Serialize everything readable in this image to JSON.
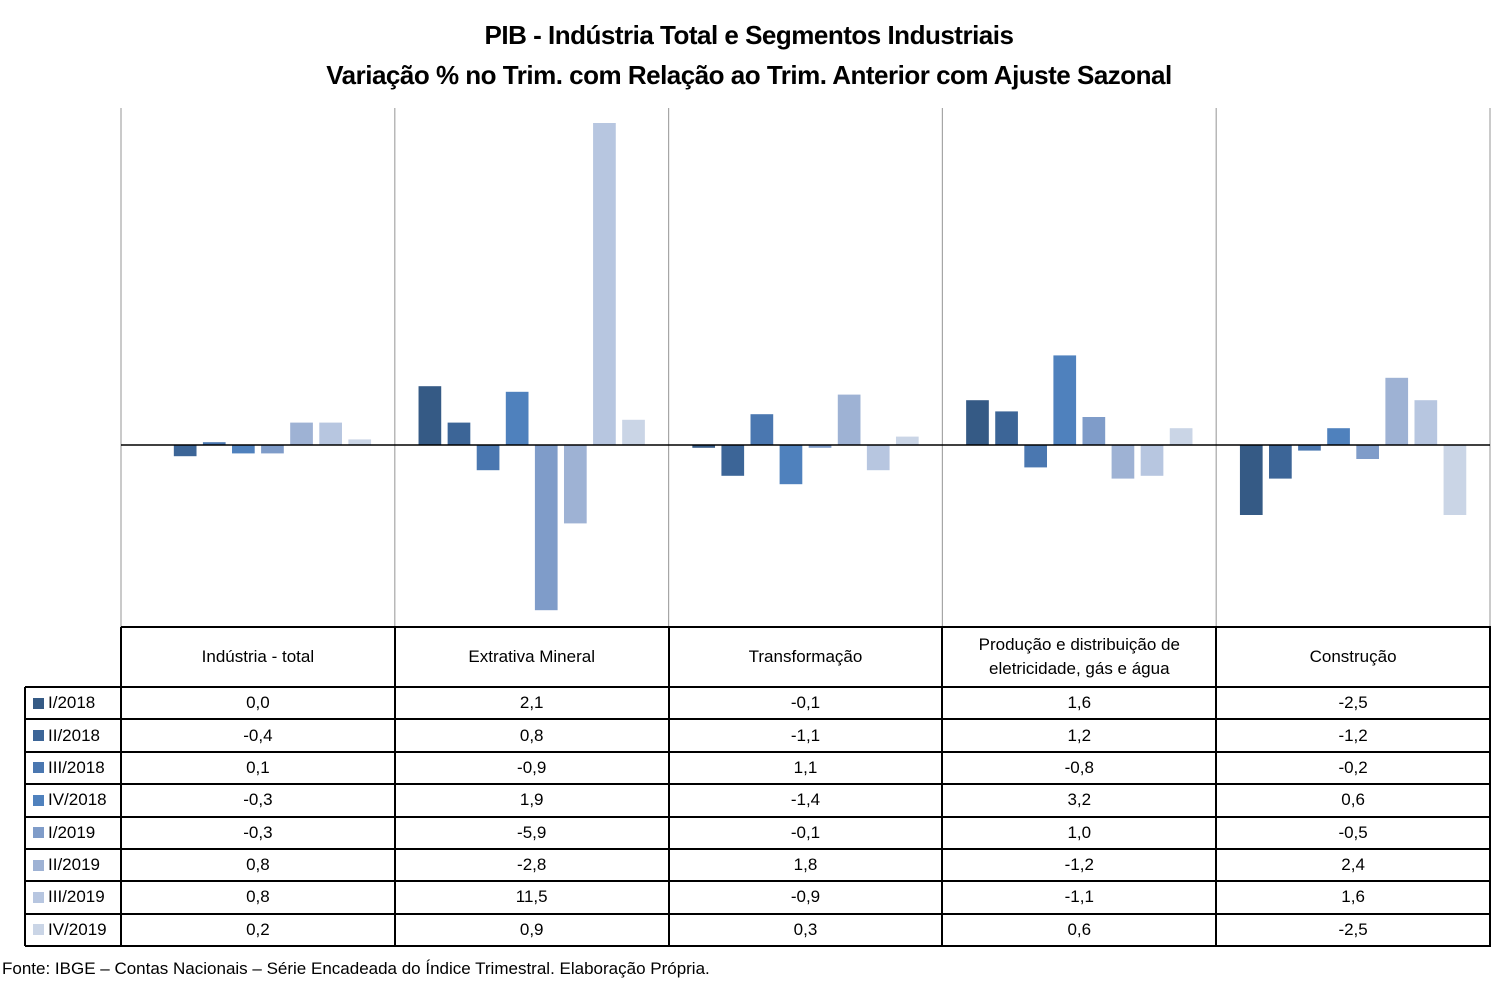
{
  "chart_data": {
    "type": "bar",
    "title": "PIB - Indústria Total e Segmentos Industriais",
    "subtitle": "Variação % no Trim. com Relação ao Trim. Anterior com Ajuste Sazonal",
    "xlabel": "",
    "ylabel": "",
    "categories": [
      "Indústria - total",
      "Extrativa Mineral",
      "Transformação",
      "Produção e distribuição de eletricidade, gás e água",
      "Construção"
    ],
    "series": [
      {
        "name": "I/2018",
        "color": "#355a85",
        "values": [
          0.0,
          2.1,
          -0.1,
          1.6,
          -2.5
        ],
        "labels": [
          "0,0",
          "2,1",
          "-0,1",
          "1,6",
          "-2,5"
        ]
      },
      {
        "name": "II/2018",
        "color": "#3c6597",
        "values": [
          -0.4,
          0.8,
          -1.1,
          1.2,
          -1.2
        ],
        "labels": [
          "-0,4",
          "0,8",
          "-1,1",
          "1,2",
          "-1,2"
        ]
      },
      {
        "name": "III/2018",
        "color": "#4a77b0",
        "values": [
          0.1,
          -0.9,
          1.1,
          -0.8,
          -0.2
        ],
        "labels": [
          "0,1",
          "-0,9",
          "1,1",
          "-0,8",
          "-0,2"
        ]
      },
      {
        "name": "IV/2018",
        "color": "#4f81bd",
        "values": [
          -0.3,
          1.9,
          -1.4,
          3.2,
          0.6
        ],
        "labels": [
          "-0,3",
          "1,9",
          "-1,4",
          "3,2",
          "0,6"
        ]
      },
      {
        "name": "I/2019",
        "color": "#7f9cc9",
        "values": [
          -0.3,
          -5.9,
          -0.1,
          1.0,
          -0.5
        ],
        "labels": [
          "-0,3",
          "-5,9",
          "-0,1",
          "1,0",
          "-0,5"
        ]
      },
      {
        "name": "II/2019",
        "color": "#9eb2d4",
        "values": [
          0.8,
          -2.8,
          1.8,
          -1.2,
          2.4
        ],
        "labels": [
          "0,8",
          "-2,8",
          "1,8",
          "-1,2",
          "2,4"
        ]
      },
      {
        "name": "III/2019",
        "color": "#b7c6e0",
        "values": [
          0.8,
          11.5,
          -0.9,
          -1.1,
          1.6
        ],
        "labels": [
          "0,8",
          "11,5",
          "-0,9",
          "-1,1",
          "1,6"
        ]
      },
      {
        "name": "IV/2019",
        "color": "#cad5e6",
        "values": [
          0.2,
          0.9,
          0.3,
          0.6,
          -2.5
        ],
        "labels": [
          "0,2",
          "0,9",
          "0,3",
          "0,6",
          "-2,5"
        ]
      }
    ],
    "ylim": [
      -6.5,
      12.0
    ],
    "grid": false,
    "legend": "bottom-left (data table)",
    "data_table": true
  },
  "source_note": "Fonte: IBGE – Contas Nacionais – Série Encadeada do Índice Trimestral. Elaboração Própria."
}
